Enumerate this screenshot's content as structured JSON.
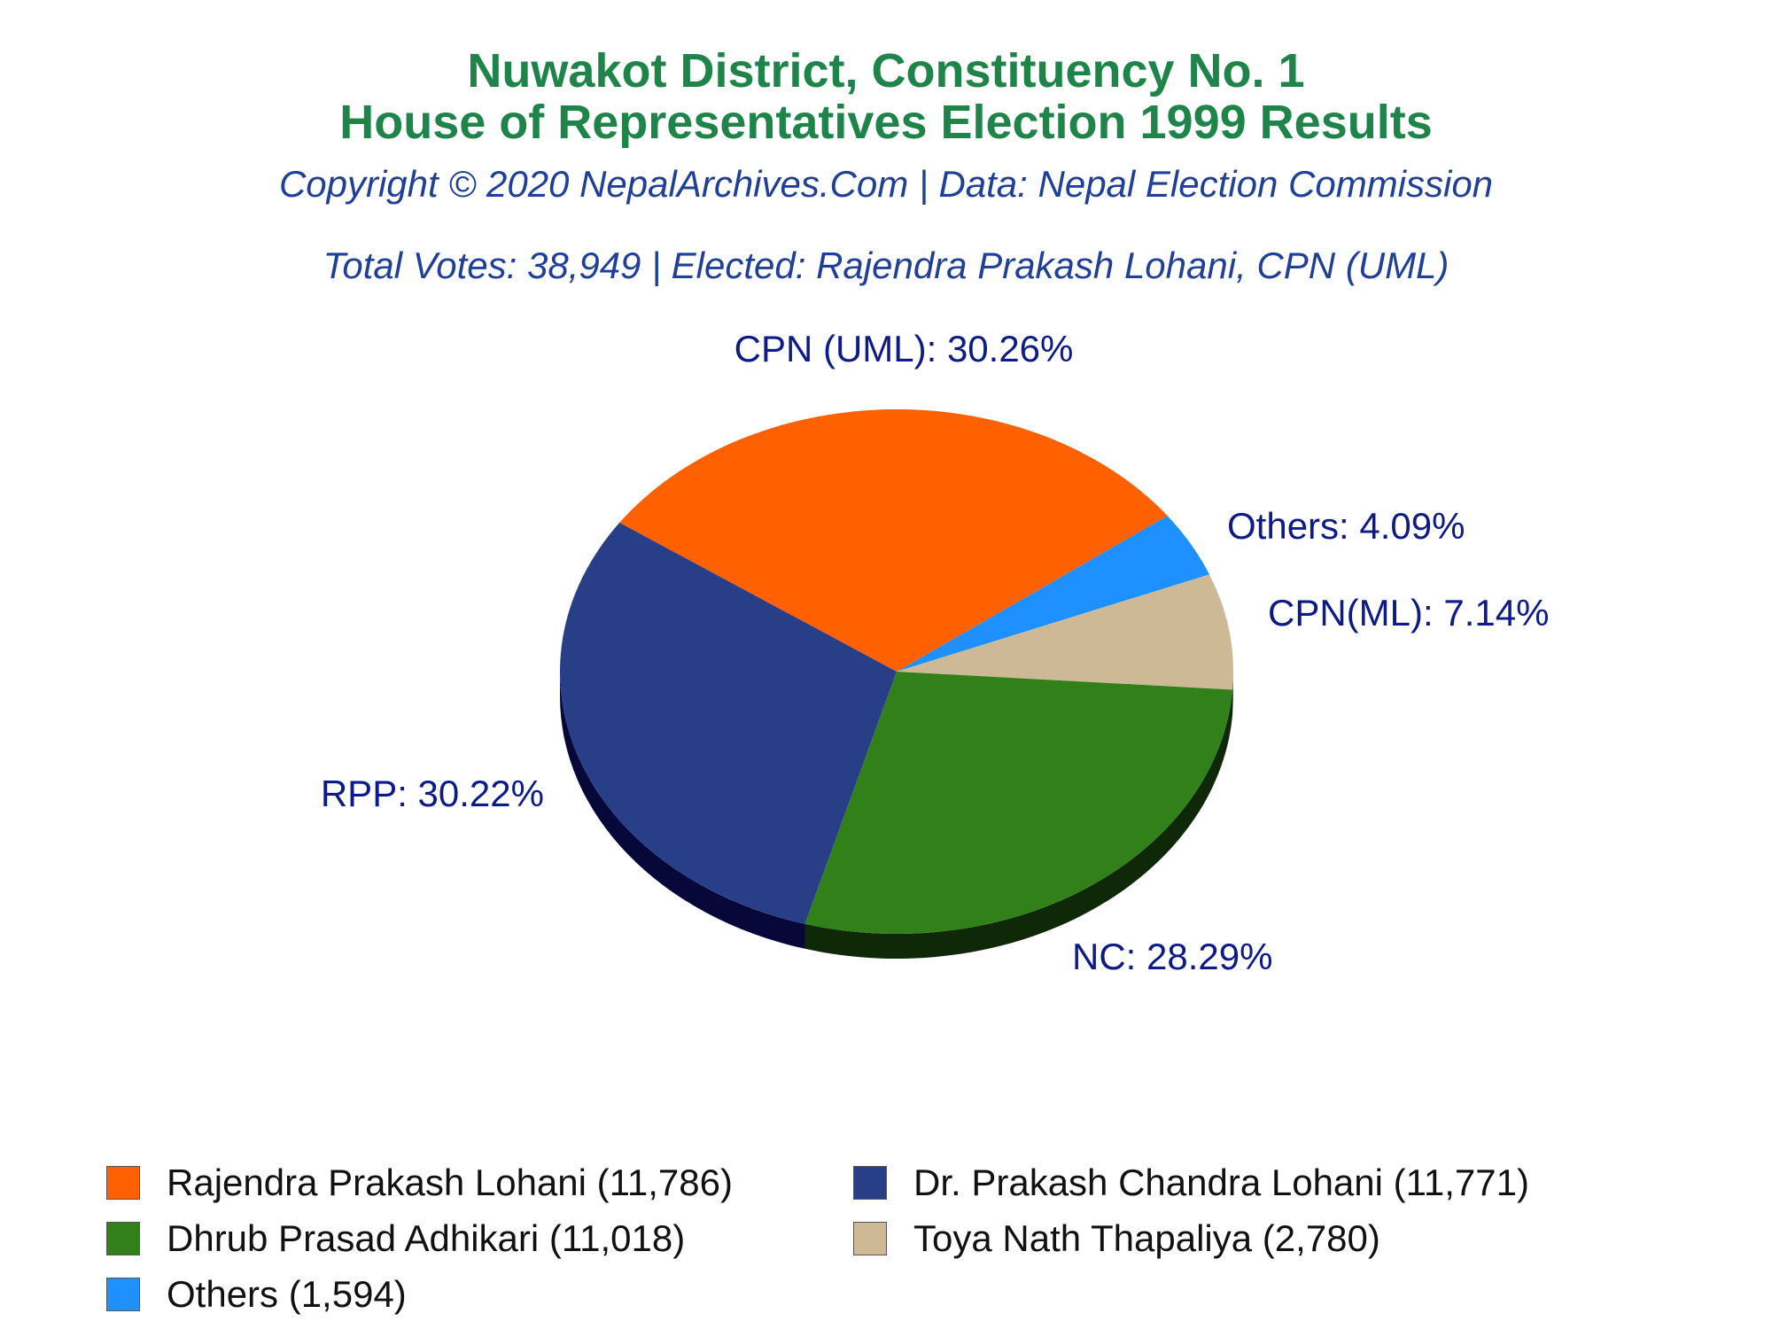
{
  "title_line1": "Nuwakot District, Constituency No. 1",
  "title_line2": "House of Representatives Election 1999 Results",
  "copyright": "Copyright © 2020 NepalArchives.Com | Data: Nepal Election Commission",
  "summary": "Total Votes: 38,949 | Elected: Rajendra Prakash Lohani, CPN (UML)",
  "colors": {
    "title": "#1e8449",
    "subtitle": "#1f3f99",
    "slice_label": "#0d1a87"
  },
  "chart_data": {
    "type": "pie",
    "style": "3d",
    "slices": [
      {
        "party": "CPN (UML)",
        "percent": 30.26,
        "label": "CPN (UML): 30.26%",
        "color": "#ff6100",
        "dark": "#7a2e00"
      },
      {
        "party": "Others",
        "percent": 4.09,
        "label": "Others: 4.09%",
        "color": "#1e90ff",
        "dark": "#0b3f80"
      },
      {
        "party": "CPN(ML)",
        "percent": 7.14,
        "label": "CPN(ML): 7.14%",
        "color": "#cdb995",
        "dark": "#5e543f"
      },
      {
        "party": "NC",
        "percent": 28.29,
        "label": "NC: 28.29%",
        "color": "#31801a",
        "dark": "#0f2808"
      },
      {
        "party": "RPP",
        "percent": 30.22,
        "label": "RPP: 30.22%",
        "color": "#283f88",
        "dark": "#07073a"
      }
    ],
    "legend": [
      {
        "label": "Rajendra Prakash Lohani (11,786)",
        "color": "#ff6100"
      },
      {
        "label": "Dr. Prakash Chandra Lohani (11,771)",
        "color": "#283f88"
      },
      {
        "label": "Dhrub Prasad Adhikari (11,018)",
        "color": "#31801a"
      },
      {
        "label": "Toya Nath Thapaliya (2,780)",
        "color": "#cdb995"
      },
      {
        "label": "Others (1,594)",
        "color": "#1e90ff"
      }
    ],
    "legend_position": "bottom"
  }
}
